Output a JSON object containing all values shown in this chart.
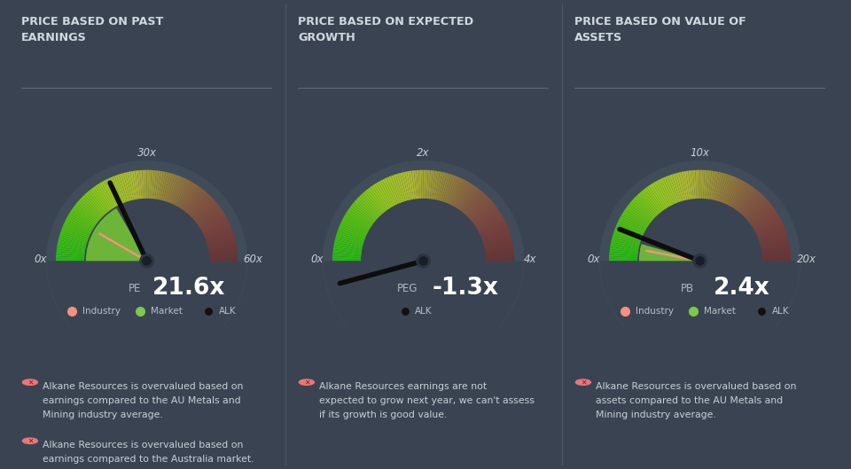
{
  "bg_color": "#3a4352",
  "panel_bg": "#404c5a",
  "text_color": "#ffffff",
  "title_color": "#d0d8e0",
  "divider_color": "#5a6878",
  "panel_titles": [
    "PRICE BASED ON PAST\nEARNINGS",
    "PRICE BASED ON EXPECTED\nGROWTH",
    "PRICE BASED ON VALUE OF\nASSETS"
  ],
  "gauges": [
    {
      "label": "PE",
      "value_str": "21.6",
      "unit": "x",
      "min_val": 0,
      "max_val": 60,
      "tick_labels": [
        "0x",
        "30x",
        "60x"
      ],
      "industry_val": 10,
      "market_val": 20,
      "alk_val": 21.6,
      "industry_color": "#f4917e",
      "market_color": "#7ec84a",
      "has_industry": true,
      "has_market": true
    },
    {
      "label": "PEG",
      "value_str": "-1.3",
      "unit": "x",
      "min_val": 0,
      "max_val": 4,
      "tick_labels": [
        "0x",
        "2x",
        "4x"
      ],
      "industry_val": null,
      "market_val": null,
      "alk_val": -1.3,
      "industry_color": "#f4917e",
      "market_color": "#7ec84a",
      "has_industry": false,
      "has_market": false
    },
    {
      "label": "PB",
      "value_str": "2.4",
      "unit": "x",
      "min_val": 0,
      "max_val": 20,
      "tick_labels": [
        "0x",
        "10x",
        "20x"
      ],
      "industry_val": 1.2,
      "market_val": 1.8,
      "alk_val": 2.4,
      "industry_color": "#f4917e",
      "market_color": "#7ec84a",
      "has_industry": true,
      "has_market": true
    }
  ],
  "notes": [
    [
      "Alkane Resources is overvalued based on\nearnings compared to the AU Metals and\nMining industry average.",
      "Alkane Resources is overvalued based on\nearnings compared to the Australia market."
    ],
    [
      "Alkane Resources earnings are not\nexpected to grow next year, we can't assess\nif its growth is good value."
    ],
    [
      "Alkane Resources is overvalued based on\nassets compared to the AU Metals and\nMining industry average."
    ]
  ],
  "arc_colors": [
    [
      0.0,
      [
        0.15,
        0.72,
        0.08
      ]
    ],
    [
      0.18,
      [
        0.35,
        0.75,
        0.08
      ]
    ],
    [
      0.32,
      [
        0.58,
        0.78,
        0.12
      ]
    ],
    [
      0.45,
      [
        0.68,
        0.72,
        0.2
      ]
    ],
    [
      0.58,
      [
        0.58,
        0.52,
        0.22
      ]
    ],
    [
      0.72,
      [
        0.52,
        0.35,
        0.25
      ]
    ],
    [
      0.85,
      [
        0.48,
        0.26,
        0.24
      ]
    ],
    [
      1.0,
      [
        0.4,
        0.2,
        0.2
      ]
    ]
  ]
}
